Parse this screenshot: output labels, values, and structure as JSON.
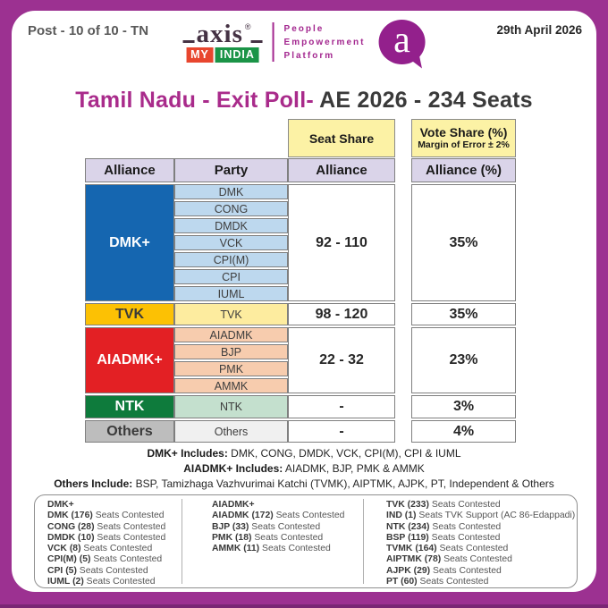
{
  "colors": {
    "frame": "#9C3191",
    "frame_bottom_strip": "#7A2774",
    "header_yellow": "#FCF2A5",
    "header_lavender": "#DAD4E9",
    "title_magenta": "#A92B8B",
    "logo_magenta": "#A3278F"
  },
  "topbar": {
    "post": "Post - 10 of 10 - TN",
    "date": "29th April 2026"
  },
  "logo": {
    "axis": "axis",
    "reg": "®",
    "my": "MY",
    "india": "INDIA",
    "tagline": {
      "0": "People",
      "1": "Empowerment",
      "2": "Platform"
    },
    "bubble": "a"
  },
  "title": {
    "magenta": "Tamil Nadu - Exit Poll-",
    "dark": " AE 2026 - 234 Seats"
  },
  "table": {
    "seat_header": "Seat Share",
    "vote_header": "Vote Share (%)",
    "vote_sub": "Margin of Error ± 2%",
    "col_alliance": "Alliance",
    "col_party": "Party",
    "col_seat": "Alliance",
    "col_vote": "Alliance (%)",
    "rows": [
      {
        "alliance": "DMK+",
        "bg": "#1566B0",
        "fg": "#FFFFFF",
        "party_bg": "#BDD8EE",
        "parties": [
          "DMK",
          "CONG",
          "DMDK",
          "VCK",
          "CPI(M)",
          "CPI",
          "IUML"
        ],
        "seats": "92 - 110",
        "vote": "35%"
      },
      {
        "alliance": "TVK",
        "bg": "#FCC104",
        "fg": "#3A3A3A",
        "party_bg": "#FDEC9F",
        "parties": [
          "TVK"
        ],
        "seats": "98 - 120",
        "vote": "35%"
      },
      {
        "alliance": "AIADMK+",
        "bg": "#E32024",
        "fg": "#FFFFFF",
        "party_bg": "#F7CCAE",
        "parties": [
          "AIADMK",
          "BJP",
          "PMK",
          "AMMK"
        ],
        "seats": "22 - 32",
        "vote": "23%"
      },
      {
        "alliance": "NTK",
        "bg": "#0E7B3C",
        "fg": "#FFFFFF",
        "party_bg": "#C4E0CE",
        "parties": [
          "NTK"
        ],
        "seats": "-",
        "vote": "3%"
      },
      {
        "alliance": "Others",
        "bg": "#BDBDBD",
        "fg": "#3A3A3A",
        "party_bg": "#F0F0F0",
        "parties": [
          "Others"
        ],
        "seats": "-",
        "vote": "4%"
      }
    ]
  },
  "notes": [
    {
      "b": "DMK+ Includes:",
      "r": " DMK, CONG, DMDK, VCK, CPI(M), CPI & IUML"
    },
    {
      "b": "AIADMK+ Includes:",
      "r": " AIADMK, BJP, PMK & AMMK"
    },
    {
      "b": "Others Include:",
      "r": " BSP, Tamizhaga Vazhvurimai Katchi (TVMK), AIPTMK, AJPK, PT, Independent & Others"
    }
  ],
  "footer": {
    "cols": [
      {
        "header": "DMK+",
        "items": [
          {
            "b": "DMK (176)",
            "r": " Seats Contested"
          },
          {
            "b": "CONG (28)",
            "r": " Seats Contested"
          },
          {
            "b": "DMDK (10)",
            "r": " Seats Contested"
          },
          {
            "b": "VCK (8)",
            "r": " Seats Contested"
          },
          {
            "b": "CPI(M) (5)",
            "r": " Seats Contested"
          },
          {
            "b": "CPI (5)",
            "r": " Seats Contested"
          },
          {
            "b": "IUML (2)",
            "r": " Seats Contested"
          }
        ]
      },
      {
        "header": "AIADMK+",
        "items": [
          {
            "b": "AIADMK (172)",
            "r": " Seats Contested"
          },
          {
            "b": "BJP (33)",
            "r": " Seats Contested"
          },
          {
            "b": "PMK (18)",
            "r": " Seats Contested"
          },
          {
            "b": "AMMK (11)",
            "r": " Seats Contested"
          }
        ]
      },
      {
        "header": "",
        "items": [
          {
            "b": "TVK (233)",
            "r": " Seats Contested"
          },
          {
            "b": "IND (1)",
            "r": " Seats TVK Support (AC 86-Edappadi)"
          },
          {
            "b": "NTK (234)",
            "r": " Seats Contested"
          },
          {
            "b": "BSP (119)",
            "r": " Seats Contested"
          },
          {
            "b": "TVMK (164)",
            "r": " Seats Contested"
          },
          {
            "b": "AIPTMK (78)",
            "r": " Seats Contested"
          },
          {
            "b": "AJPK (29)",
            "r": " Seats Contested"
          },
          {
            "b": "PT (60)",
            "r": " Seats Contested"
          }
        ]
      }
    ]
  },
  "chart_data": {
    "type": "table",
    "title": "Tamil Nadu - Exit Poll- AE 2026 - 234 Seats",
    "columns": [
      "Alliance",
      "Party",
      "Seat Share (Alliance)",
      "Vote Share % (Alliance), Margin of Error ± 2%"
    ],
    "rows": [
      {
        "alliance": "DMK+",
        "parties": [
          "DMK",
          "CONG",
          "DMDK",
          "VCK",
          "CPI(M)",
          "CPI",
          "IUML"
        ],
        "seat_share": "92 - 110",
        "vote_share_pct": 35
      },
      {
        "alliance": "TVK",
        "parties": [
          "TVK"
        ],
        "seat_share": "98 - 120",
        "vote_share_pct": 35
      },
      {
        "alliance": "AIADMK+",
        "parties": [
          "AIADMK",
          "BJP",
          "PMK",
          "AMMK"
        ],
        "seat_share": "22 - 32",
        "vote_share_pct": 23
      },
      {
        "alliance": "NTK",
        "parties": [
          "NTK"
        ],
        "seat_share": "-",
        "vote_share_pct": 3
      },
      {
        "alliance": "Others",
        "parties": [
          "Others"
        ],
        "seat_share": "-",
        "vote_share_pct": 4
      }
    ],
    "seats_contested": {
      "DMK+": {
        "DMK": 176,
        "CONG": 28,
        "DMDK": 10,
        "VCK": 8,
        "CPI(M)": 5,
        "CPI": 5,
        "IUML": 2
      },
      "AIADMK+": {
        "AIADMK": 172,
        "BJP": 33,
        "PMK": 18,
        "AMMK": 11
      },
      "Others_and_rest": {
        "TVK": 233,
        "IND (TVK Support, AC 86-Edappadi)": 1,
        "NTK": 234,
        "BSP": 119,
        "TVMK": 164,
        "AIPTMK": 78,
        "AJPK": 29,
        "PT": 60
      }
    }
  }
}
